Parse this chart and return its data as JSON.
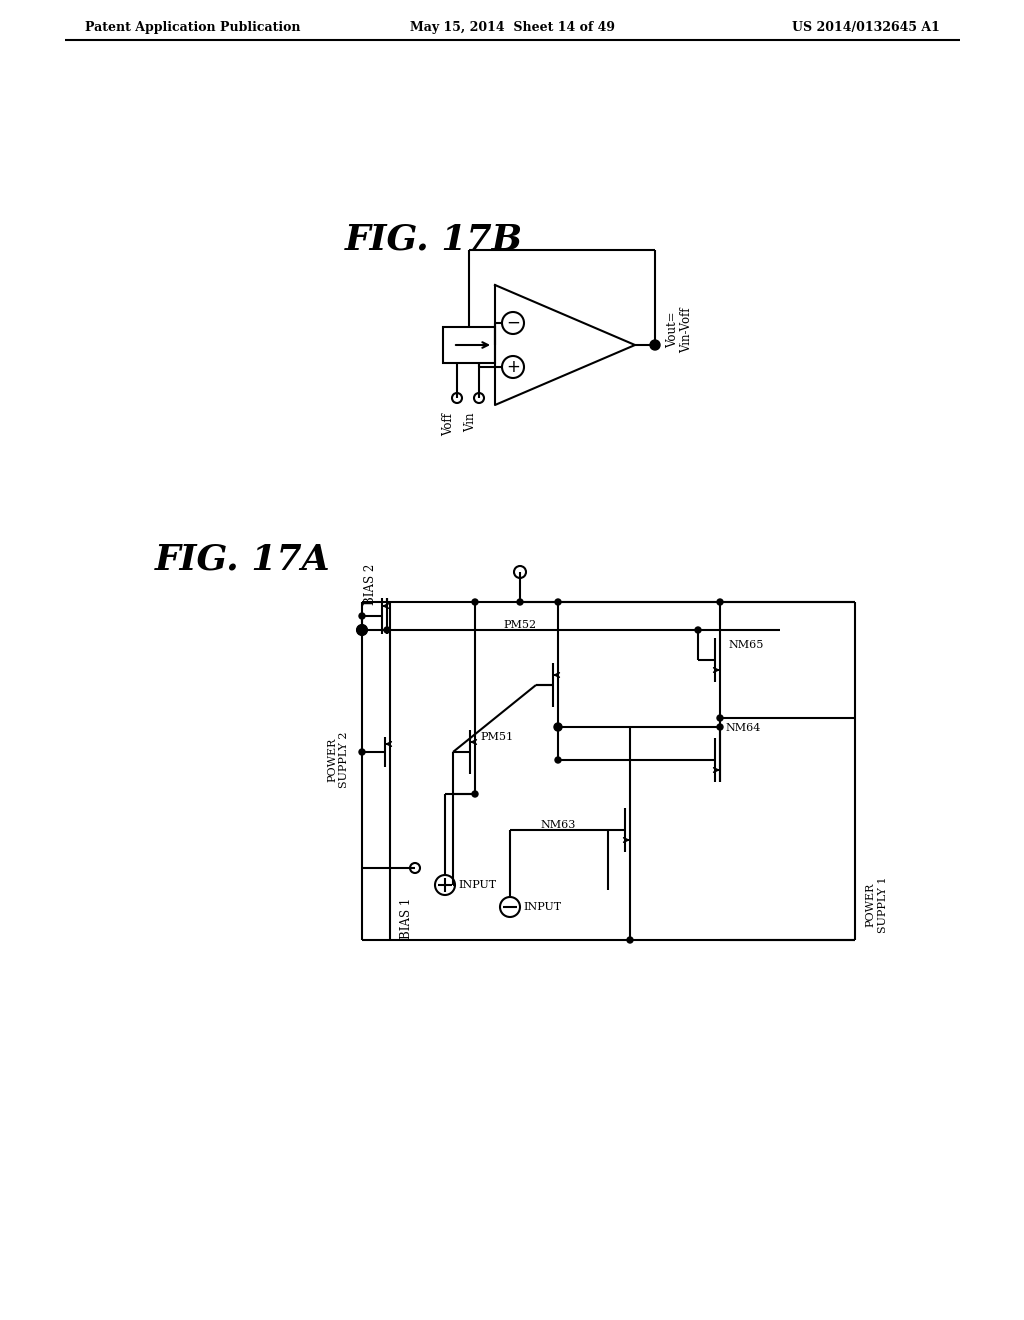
{
  "background_color": "#ffffff",
  "header_left": "Patent Application Publication",
  "header_center": "May 15, 2014  Sheet 14 of 49",
  "header_right": "US 2014/0132645 A1",
  "line_color": "#000000",
  "line_width": 1.5
}
